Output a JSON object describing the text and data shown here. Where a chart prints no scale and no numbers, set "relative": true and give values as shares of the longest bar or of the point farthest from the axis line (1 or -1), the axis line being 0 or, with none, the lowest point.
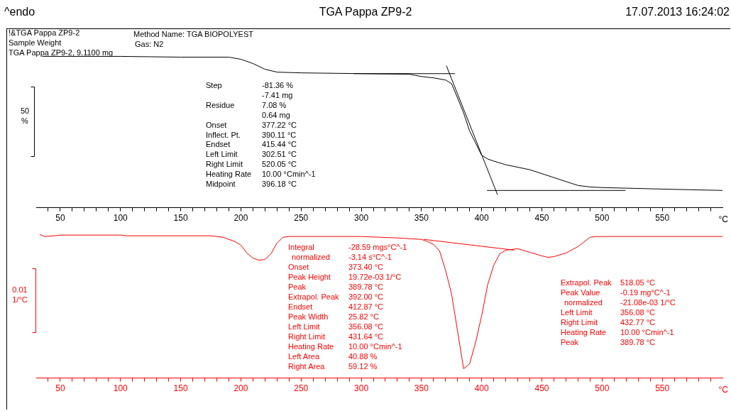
{
  "chart_data": [
    {
      "type": "line",
      "title": "TGA Pappa ZP9-2",
      "relative": true,
      "ylabel": "50 %",
      "xlabel": "°C",
      "xlim": [
        30,
        600
      ],
      "xticks": [
        50,
        100,
        150,
        200,
        250,
        300,
        350,
        400,
        450,
        500,
        550,
        {
          "value": 40,
          "label": null
        },
        {
          "value": 60,
          "label": null
        },
        {
          "value": 70,
          "label": null
        },
        {
          "value": 80,
          "label": null
        },
        {
          "value": 90,
          "label": null
        },
        {
          "value": 110,
          "label": null
        },
        {
          "value": 120,
          "label": null
        },
        {
          "value": 130,
          "label": null
        },
        {
          "value": 140,
          "label": null
        },
        {
          "value": 160,
          "label": null
        },
        {
          "value": 170,
          "label": null
        },
        {
          "value": 180,
          "label": null
        },
        {
          "value": 190,
          "label": null
        },
        {
          "value": 210,
          "label": null
        },
        {
          "value": 220,
          "label": null
        },
        {
          "value": 230,
          "label": null
        },
        {
          "value": 240,
          "label": null
        },
        {
          "value": 260,
          "label": null
        },
        {
          "value": 270,
          "label": null
        },
        {
          "value": 280,
          "label": null
        },
        {
          "value": 290,
          "label": null
        },
        {
          "value": 310,
          "label": null
        },
        {
          "value": 320,
          "label": null
        },
        {
          "value": 330,
          "label": null
        },
        {
          "value": 340,
          "label": null
        },
        {
          "value": 360,
          "label": null
        },
        {
          "value": 370,
          "label": null
        },
        {
          "value": 380,
          "label": null
        },
        {
          "value": 390,
          "label": null
        },
        {
          "value": 410,
          "label": null
        },
        {
          "value": 420,
          "label": null
        },
        {
          "value": 430,
          "label": null
        },
        {
          "value": 440,
          "label": null
        },
        {
          "value": 460,
          "label": null
        },
        {
          "value": 470,
          "label": null
        },
        {
          "value": 480,
          "label": null
        },
        {
          "value": 490,
          "label": null
        },
        {
          "value": 510,
          "label": null
        },
        {
          "value": 520,
          "label": null
        },
        {
          "value": 530,
          "label": null
        },
        {
          "value": 540,
          "label": null
        },
        {
          "value": 560,
          "label": null
        },
        {
          "value": 570,
          "label": null
        },
        {
          "value": 580,
          "label": null
        },
        {
          "value": 590,
          "label": null
        }
      ],
      "tick_labels": "x",
      "marker": "none",
      "line_style": "solid",
      "annotations": [
        "^endo",
        "17.07.2013 16:24:02",
        "!&TGA Pappa ZP9-2",
        "Sample Weight",
        "TGA Pappa ZP9-2, 9.1100 mg",
        "Method Name: TGA BIOPOLYEST",
        "Gas: N2",
        "Step",
        "-81.36 %",
        "-7.41 mg",
        "Residue",
        "7.08 %",
        "0.64 mg",
        "Onset",
        "377.22 °C",
        "Inflect. Pt.",
        "390.11 °C",
        "Endset",
        "415.44 °C",
        "Left Limit",
        "302.51 °C",
        "Right Limit",
        "520.05 °C",
        "Heating Rate",
        "10.00 °Cmin^-1",
        "Midpoint",
        "396.18 °C"
      ],
      "series": [
        {
          "color": "#000000",
          "x": [
            35,
            100,
            150,
            190,
            200,
            210,
            220,
            230,
            250,
            300,
            340,
            350,
            360,
            370,
            375,
            380,
            385,
            390,
            395,
            400,
            405,
            410,
            420,
            440,
            460,
            480,
            490,
            500,
            550,
            600
          ],
          "values": [
            1.0,
            1.0,
            0.995,
            0.995,
            0.981,
            0.953,
            0.915,
            0.896,
            0.891,
            0.886,
            0.882,
            0.867,
            0.858,
            0.844,
            0.82,
            0.725,
            0.626,
            0.507,
            0.427,
            0.346,
            0.322,
            0.308,
            0.284,
            0.251,
            0.199,
            0.147,
            0.137,
            0.133,
            0.123,
            0.114
          ]
        },
        {
          "type": "line",
          "color": "#000000",
          "x": [
            293.5,
            377.8
          ],
          "values": [
            0.886,
            0.886
          ]
        },
        {
          "type": "line",
          "color": "#000000",
          "x": [
            370.7,
            413.2
          ],
          "values": [
            0.938,
            0.085
          ]
        },
        {
          "type": "line",
          "color": "#000000",
          "x": [
            404.4,
            519.4
          ],
          "values": [
            0.114,
            0.114
          ]
        }
      ]
    },
    {
      "type": "line",
      "relative": true,
      "ylabel": "0.01 1/°C",
      "xlabel": "°C",
      "xlim": [
        30,
        600
      ],
      "xticks": [
        50,
        100,
        150,
        200,
        250,
        300,
        350,
        400,
        450,
        500,
        550,
        {
          "value": 40,
          "label": null
        },
        {
          "value": 60,
          "label": null
        },
        {
          "value": 70,
          "label": null
        },
        {
          "value": 80,
          "label": null
        },
        {
          "value": 90,
          "label": null
        },
        {
          "value": 110,
          "label": null
        },
        {
          "value": 120,
          "label": null
        },
        {
          "value": 130,
          "label": null
        },
        {
          "value": 140,
          "label": null
        },
        {
          "value": 160,
          "label": null
        },
        {
          "value": 170,
          "label": null
        },
        {
          "value": 180,
          "label": null
        },
        {
          "value": 190,
          "label": null
        },
        {
          "value": 210,
          "label": null
        },
        {
          "value": 220,
          "label": null
        },
        {
          "value": 230,
          "label": null
        },
        {
          "value": 240,
          "label": null
        },
        {
          "value": 260,
          "label": null
        },
        {
          "value": 270,
          "label": null
        },
        {
          "value": 280,
          "label": null
        },
        {
          "value": 290,
          "label": null
        },
        {
          "value": 310,
          "label": null
        },
        {
          "value": 320,
          "label": null
        },
        {
          "value": 330,
          "label": null
        },
        {
          "value": 340,
          "label": null
        },
        {
          "value": 360,
          "label": null
        },
        {
          "value": 370,
          "label": null
        },
        {
          "value": 380,
          "label": null
        },
        {
          "value": 390,
          "label": null
        },
        {
          "value": 410,
          "label": null
        },
        {
          "value": 420,
          "label": null
        },
        {
          "value": 430,
          "label": null
        },
        {
          "value": 440,
          "label": null
        },
        {
          "value": 460,
          "label": null
        },
        {
          "value": 470,
          "label": null
        },
        {
          "value": 480,
          "label": null
        },
        {
          "value": 490,
          "label": null
        },
        {
          "value": 510,
          "label": null
        },
        {
          "value": 520,
          "label": null
        },
        {
          "value": 530,
          "label": null
        },
        {
          "value": 540,
          "label": null
        },
        {
          "value": 560,
          "label": null
        },
        {
          "value": 570,
          "label": null
        },
        {
          "value": 580,
          "label": null
        },
        {
          "value": 590,
          "label": null
        }
      ],
      "tick_labels": "x",
      "marker": "none",
      "line_style": "solid",
      "annotations": [
        "Integral",
        "-28.59 mgs°C^-1",
        "normalized",
        "-3.14 s°C^-1",
        "Onset",
        "373.40 °C",
        "Peak Height",
        "19.72e-03 1/°C",
        "Peak",
        "389.78 °C",
        "Extrapol. Peak",
        "392.00 °C",
        "Endset",
        "412.87 °C",
        "Peak Width",
        "25.82 °C",
        "Left Limit",
        "356.08 °C",
        "Right Limit",
        "431.64 °C",
        "Heating Rate",
        "10.00 °Cmin^-1",
        "Left Area",
        "40.88 %",
        "Right Area",
        "59.12 %",
        "Extrapol. Peak",
        "518.05 °C",
        "Peak Value",
        "-0.19 mg°C^-1",
        "normalized",
        "-21.08e-03 1/°C",
        "Left Limit",
        "356.08 °C",
        "Right Limit",
        "432.77 °C",
        "Heating Rate",
        "10.00 °Cmin^-1",
        "Peak",
        "389.78 °C"
      ],
      "series": [
        {
          "color": "#ff0000",
          "x": [
            33,
            37,
            45,
            50,
            100,
            105,
            175,
            185,
            195,
            200,
            205,
            210,
            215,
            220,
            225,
            230,
            235,
            240,
            300,
            330,
            350,
            355,
            360,
            365,
            370,
            375,
            380,
            385,
            390,
            395,
            400,
            405,
            410,
            415,
            420,
            430,
            440,
            450,
            455,
            460,
            470,
            480,
            490,
            495,
            600
          ],
          "values": [
            1.0,
            0.985,
            0.99,
            0.995,
            0.995,
            0.99,
            0.99,
            0.98,
            0.95,
            0.925,
            0.87,
            0.835,
            0.82,
            0.825,
            0.865,
            0.94,
            0.98,
            0.985,
            0.985,
            0.975,
            0.965,
            0.95,
            0.93,
            0.885,
            0.75,
            0.585,
            0.325,
            0.065,
            0.1,
            0.25,
            0.435,
            0.65,
            0.785,
            0.865,
            0.89,
            0.9,
            0.875,
            0.85,
            0.84,
            0.845,
            0.87,
            0.915,
            0.98,
            0.985,
            0.985
          ]
        },
        {
          "type": "line",
          "color": "#ff0000",
          "x": [
            352,
            427
          ],
          "values": [
            0.965,
            0.89
          ]
        }
      ]
    }
  ]
}
